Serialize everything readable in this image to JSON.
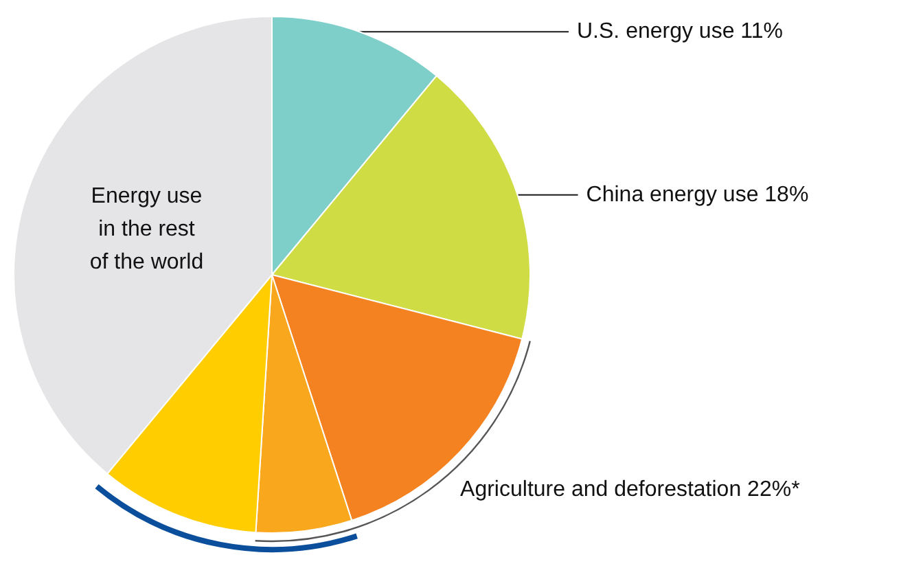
{
  "chart_data": {
    "type": "pie",
    "categories": [
      "U.S. energy use 11%",
      "China energy use 18%",
      "Agriculture and deforestation 22%*",
      null,
      null,
      "Energy use\nin the rest\nof the world"
    ],
    "values": [
      11,
      18,
      16,
      6,
      10,
      39
    ],
    "colors": [
      "#7ecfc9",
      "#cfdc44",
      "#f58220",
      "#f9a71c",
      "#ffcd00",
      "#e5e5e7"
    ],
    "legend": false
  }
}
